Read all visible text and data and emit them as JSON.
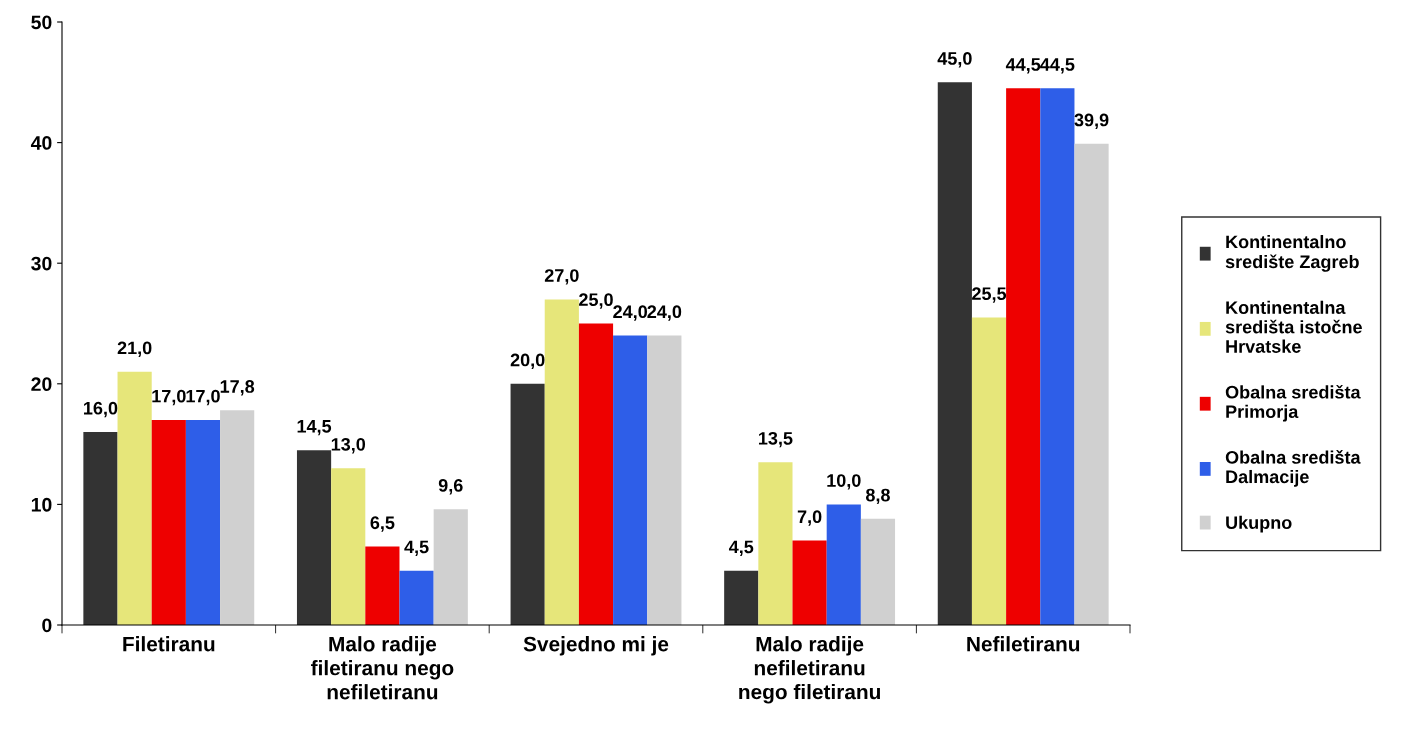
{
  "chart_data": {
    "type": "bar",
    "categories": [
      "Filetiranu",
      "Malo radije\nfiletiranu nego\nnefiletiranu",
      "Svejedno mi je",
      "Malo radije\nnefiletiranu\nnego filetiranu",
      "Nefiletiranu"
    ],
    "series": [
      {
        "name": "Kontinentalno\nsredište Zagreb",
        "color": "#333333",
        "values": [
          16.0,
          14.5,
          20.0,
          4.5,
          45.0
        ],
        "value_labels": [
          "16,0",
          "14,5",
          "20,0",
          "4,5",
          "45,0"
        ]
      },
      {
        "name": "Kontinentalna\nsredišta istočne\nHrvatske",
        "color": "#e6e67a",
        "values": [
          21.0,
          13.0,
          27.0,
          13.5,
          25.5
        ],
        "value_labels": [
          "21,0",
          "13,0",
          "27,0",
          "13,5",
          "25,5"
        ]
      },
      {
        "name": "Obalna središta\nPrimorja",
        "color": "#ee0000",
        "values": [
          17.0,
          6.5,
          25.0,
          7.0,
          44.5
        ],
        "value_labels": [
          "17,0",
          "6,5",
          "25,0",
          "7,0",
          "44,5"
        ]
      },
      {
        "name": "Obalna središta\nDalmacije",
        "color": "#2e5ee8",
        "values": [
          17.0,
          4.5,
          24.0,
          10.0,
          44.5
        ],
        "value_labels": [
          "17,0",
          "4,5",
          "24,0",
          "10,0",
          "44,5"
        ]
      },
      {
        "name": "Ukupno",
        "color": "#d0d0d0",
        "values": [
          17.8,
          9.6,
          24.0,
          8.8,
          39.9
        ],
        "value_labels": [
          "17,8",
          "9,6",
          "24,0",
          "8,8",
          "39,9"
        ]
      }
    ],
    "ylim": [
      0,
      50
    ],
    "yticks": [
      0,
      10,
      20,
      30,
      40,
      50
    ],
    "grid": false,
    "legend": "right"
  }
}
